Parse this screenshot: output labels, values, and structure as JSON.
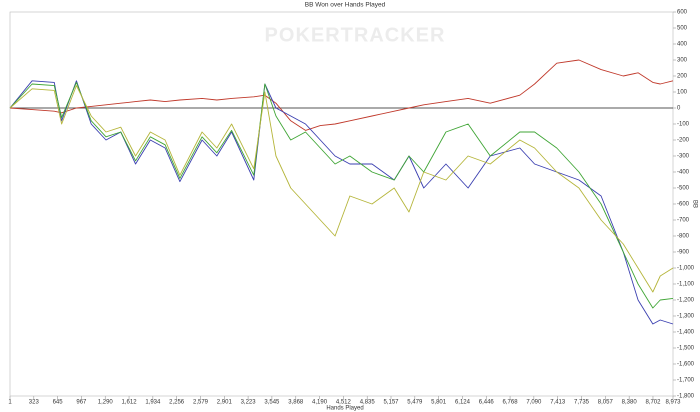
{
  "chart_data": {
    "type": "line",
    "title": "BB Won over Hands Played",
    "watermark": "POKERTRACKER",
    "x_label": "Hands Played",
    "y_label": "BB",
    "xlim": [
      1,
      8973
    ],
    "ylim": [
      -1800,
      600
    ],
    "xticks": [
      1,
      323,
      645,
      967,
      {
        "value": 1290,
        "label": "1,290"
      },
      {
        "value": 1612,
        "label": "1,612"
      },
      {
        "value": 1934,
        "label": "1,934"
      },
      {
        "value": 2256,
        "label": "2,256"
      },
      {
        "value": 2579,
        "label": "2,579"
      },
      {
        "value": 2901,
        "label": "2,901"
      },
      {
        "value": 3223,
        "label": "3,223"
      },
      {
        "value": 3545,
        "label": "3,545"
      },
      {
        "value": 3868,
        "label": "3,868"
      },
      {
        "value": 4190,
        "label": "4,190"
      },
      {
        "value": 4512,
        "label": "4,512"
      },
      {
        "value": 4835,
        "label": "4,835"
      },
      {
        "value": 5157,
        "label": "5,157"
      },
      {
        "value": 5479,
        "label": "5,479"
      },
      {
        "value": 5801,
        "label": "5,801"
      },
      {
        "value": 6124,
        "label": "6,124"
      },
      {
        "value": 6446,
        "label": "6,446"
      },
      {
        "value": 6768,
        "label": "6,768"
      },
      {
        "value": 7090,
        "label": "7,090"
      },
      {
        "value": 7413,
        "label": "7,413"
      },
      {
        "value": 7735,
        "label": "7,735"
      },
      {
        "value": 8057,
        "label": "8,057"
      },
      {
        "value": 8380,
        "label": "8,380"
      },
      {
        "value": 8702,
        "label": "8,702"
      },
      {
        "value": 8973,
        "label": "8,973"
      }
    ],
    "yticks": [
      600,
      500,
      400,
      300,
      200,
      100,
      0,
      -100,
      -200,
      -300,
      -400,
      -500,
      -600,
      -700,
      -800,
      -900,
      {
        "value": -1000,
        "label": "-1,000"
      },
      {
        "value": -1100,
        "label": "-1,100"
      },
      {
        "value": -1200,
        "label": "-1,200"
      },
      {
        "value": -1300,
        "label": "-1,300"
      },
      {
        "value": -1400,
        "label": "-1,400"
      },
      {
        "value": -1500,
        "label": "-1,500"
      },
      {
        "value": -1600,
        "label": "-1,600"
      },
      {
        "value": -1700,
        "label": "-1,700"
      },
      {
        "value": -1800,
        "label": "-1,800"
      }
    ],
    "x": [
      1,
      300,
      600,
      700,
      900,
      1100,
      1300,
      1500,
      1700,
      1900,
      2100,
      2300,
      2600,
      2800,
      3000,
      3300,
      3450,
      3600,
      3800,
      4000,
      4200,
      4400,
      4600,
      4900,
      5200,
      5400,
      5600,
      5900,
      6200,
      6500,
      6900,
      7100,
      7400,
      7700,
      8000,
      8300,
      8500,
      8700,
      8800,
      8973
    ],
    "series": [
      {
        "color": "#c0392b",
        "values": [
          0,
          -10,
          -20,
          -30,
          0,
          10,
          20,
          30,
          40,
          50,
          40,
          50,
          60,
          50,
          60,
          70,
          80,
          30,
          -80,
          -140,
          -110,
          -100,
          -80,
          -50,
          -20,
          0,
          20,
          40,
          60,
          30,
          80,
          150,
          280,
          300,
          240,
          200,
          220,
          160,
          150,
          170
        ]
      },
      {
        "color": "#3a3fb0",
        "values": [
          0,
          170,
          160,
          -80,
          170,
          -100,
          -200,
          -150,
          -350,
          -200,
          -250,
          -460,
          -200,
          -300,
          -150,
          -450,
          150,
          0,
          -50,
          -100,
          -200,
          -300,
          -350,
          -350,
          -450,
          -300,
          -500,
          -350,
          -500,
          -300,
          -250,
          -350,
          -400,
          -450,
          -550,
          -900,
          -1200,
          -1350,
          -1325,
          -1350
        ]
      },
      {
        "color": "#3fa535",
        "values": [
          0,
          150,
          140,
          -60,
          160,
          -80,
          -180,
          -150,
          -330,
          -180,
          -230,
          -440,
          -180,
          -280,
          -140,
          -420,
          150,
          -50,
          -200,
          -150,
          -250,
          -350,
          -300,
          -400,
          -450,
          -300,
          -400,
          -150,
          -100,
          -300,
          -150,
          -150,
          -250,
          -400,
          -600,
          -900,
          -1100,
          -1250,
          -1200,
          -1190
        ]
      },
      {
        "color": "#b5b53a",
        "values": [
          0,
          120,
          110,
          -100,
          140,
          -50,
          -150,
          -120,
          -300,
          -150,
          -200,
          -420,
          -150,
          -250,
          -100,
          -380,
          100,
          -300,
          -500,
          -600,
          -700,
          -800,
          -550,
          -600,
          -500,
          -650,
          -400,
          -450,
          -300,
          -350,
          -200,
          -250,
          -400,
          -500,
          -700,
          -850,
          -1000,
          -1150,
          -1050,
          -1000
        ]
      }
    ]
  }
}
